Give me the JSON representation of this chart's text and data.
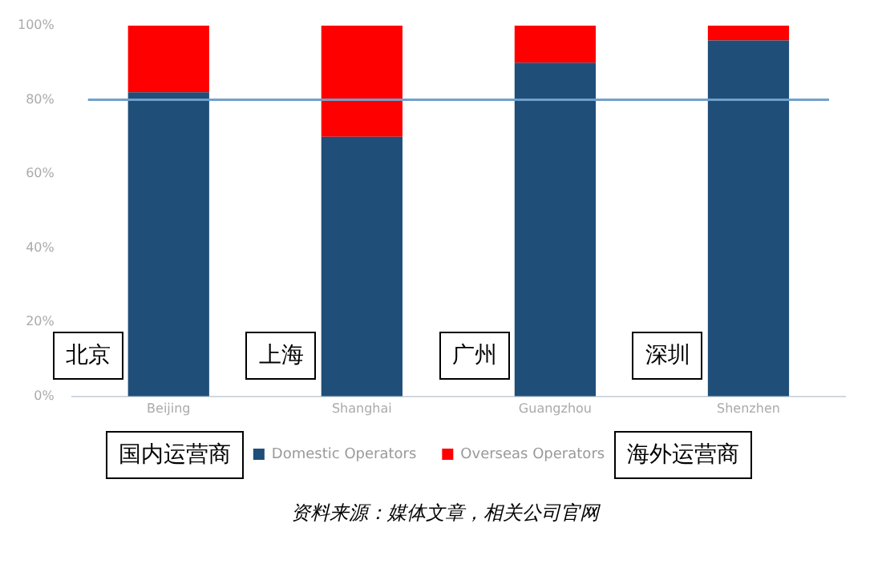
{
  "chart_data": {
    "type": "bar",
    "stacked": true,
    "categories": [
      "Beijing",
      "Shanghai",
      "Guangzhou",
      "Shenzhen"
    ],
    "series": [
      {
        "name": "Domestic Operators",
        "color": "#1f4e79",
        "values": [
          82,
          70,
          90,
          96
        ]
      },
      {
        "name": "Overseas Operators",
        "color": "#ff0000",
        "values": [
          18,
          30,
          10,
          4
        ]
      }
    ],
    "ylim": [
      0,
      100
    ],
    "yticks": [
      {
        "value": 0,
        "label": "0%"
      },
      {
        "value": 20,
        "label": "20%"
      },
      {
        "value": 40,
        "label": "40%"
      },
      {
        "value": 60,
        "label": "60%"
      },
      {
        "value": 80,
        "label": "80%"
      },
      {
        "value": 100,
        "label": "100%"
      }
    ],
    "grid": false,
    "legend": "bottom",
    "ref_lines": [
      {
        "axis": "y",
        "value": 80,
        "color": "#6fa0cc"
      }
    ],
    "annotations": [
      "北京",
      "上海",
      "广州",
      "深圳",
      "国内运营商",
      "海外运营商",
      "资料来源：媒体文章，相关公司官网"
    ]
  }
}
